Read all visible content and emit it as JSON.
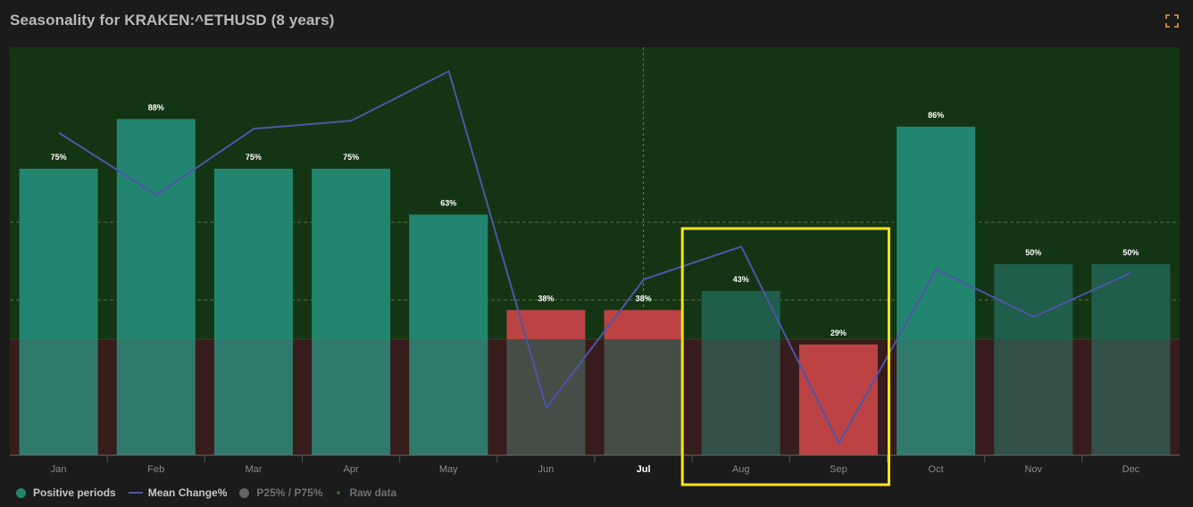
{
  "header": {
    "title": "Seasonality for KRAKEN:^ETHUSD (8 years)",
    "expand_icon": "expand-icon"
  },
  "colors": {
    "background": "#1b1b1b",
    "positive_zone": "#143514",
    "negative_zone": "#371c1c",
    "bar_positive": "#22856f",
    "bar_negative": "#bc4343",
    "bar_neutral": "#1f5e4a",
    "mean_line": "#4e55a6",
    "highlight": "#fde314",
    "accent": "#e7a03c"
  },
  "chart_data": {
    "type": "bar",
    "title": "Seasonality for KRAKEN:^ETHUSD (8 years)",
    "categories": [
      "Jan",
      "Feb",
      "Mar",
      "Apr",
      "May",
      "Jun",
      "Jul",
      "Aug",
      "Sep",
      "Oct",
      "Nov",
      "Dec"
    ],
    "current_category": "Jul",
    "highlighted_categories": [
      "Aug",
      "Sep"
    ],
    "series": [
      {
        "name": "Positive periods",
        "type": "bar",
        "unit": "%",
        "values": [
          75,
          88,
          75,
          75,
          63,
          38,
          38,
          43,
          29,
          86,
          50,
          50
        ],
        "labels": [
          "75%",
          "88%",
          "75%",
          "75%",
          "63%",
          "38%",
          "38%",
          "43%",
          "29%",
          "86%",
          "50%",
          "50%"
        ]
      },
      {
        "name": "Mean Change%",
        "type": "line",
        "values": [
          31.5,
          22.2,
          32.1,
          33.3,
          40.7,
          -9.6,
          9.6,
          14.5,
          -14.9,
          11.1,
          4.0,
          10.6
        ]
      }
    ],
    "legend_position": "bottom-left",
    "grid": "horizontal-dashed"
  },
  "legend": {
    "items": [
      {
        "label": "Positive periods",
        "marker": "dot",
        "color": "#22856f",
        "text_color": "#c6c6c6"
      },
      {
        "label": "Mean Change%",
        "marker": "line",
        "color": "#4e55a6",
        "text_color": "#c6c6c6"
      },
      {
        "label": "P25% / P75%",
        "marker": "dot",
        "color": "#636363",
        "text_color": "#707070"
      },
      {
        "label": "Raw data",
        "marker": "small-dot",
        "color": "#2c6a2c",
        "text_color": "#707070"
      }
    ]
  }
}
